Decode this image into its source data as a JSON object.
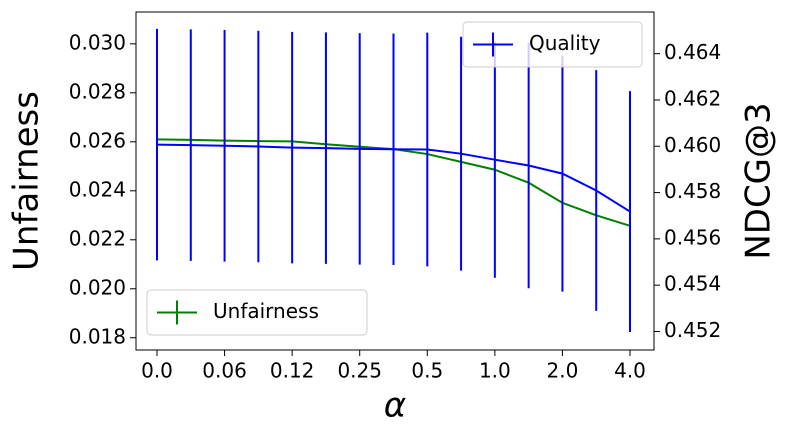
{
  "chart_data": {
    "type": "line",
    "xlabel": "α",
    "ylabel": "Unfairness",
    "y2label": "NDCG@3",
    "categories": [
      "0.0",
      null,
      "0.06",
      null,
      "0.12",
      null,
      "0.25",
      null,
      "0.5",
      null,
      "1.0",
      null,
      "2.0",
      null,
      "4.0"
    ],
    "ylim": [
      0.0175,
      0.0313
    ],
    "yticks": [
      0.018,
      {
        "value": 0.02,
        "label": "0.020"
      },
      0.022,
      0.024,
      0.026,
      0.028,
      {
        "value": 0.03,
        "label": "0.030"
      }
    ],
    "y2lim": [
      0.4512,
      0.4658
    ],
    "y2ticks": [
      0.452,
      0.454,
      0.456,
      {
        "value": 0.458,
        "label": "0.458"
      },
      {
        "value": 0.46,
        "label": "0.460"
      },
      0.462,
      0.464
    ],
    "series": [
      {
        "name": "Unfairness",
        "color": "#008000",
        "axis": "y",
        "legend": "lower left",
        "values": [
          0.0261,
          0.02608,
          0.02605,
          0.02603,
          0.02602,
          0.0259,
          0.0258,
          0.0257,
          0.0255,
          0.02518,
          0.02486,
          0.02433,
          0.02351,
          0.023,
          0.02257
        ]
      },
      {
        "name": "Quality",
        "color": "#0000ff",
        "axis": "y2",
        "legend": "upper right",
        "values": [
          0.46007,
          0.46005,
          0.46002,
          0.45999,
          0.45994,
          0.45992,
          0.45989,
          0.45987,
          0.45986,
          0.45968,
          0.45942,
          0.45917,
          0.45882,
          0.45809,
          0.45718
        ],
        "errors": [
          0.005,
          0.005,
          0.005,
          0.005,
          0.005,
          0.005,
          0.005,
          0.005,
          0.00505,
          0.00505,
          0.0051,
          0.0053,
          0.0051,
          0.0052,
          0.0052
        ]
      }
    ]
  }
}
